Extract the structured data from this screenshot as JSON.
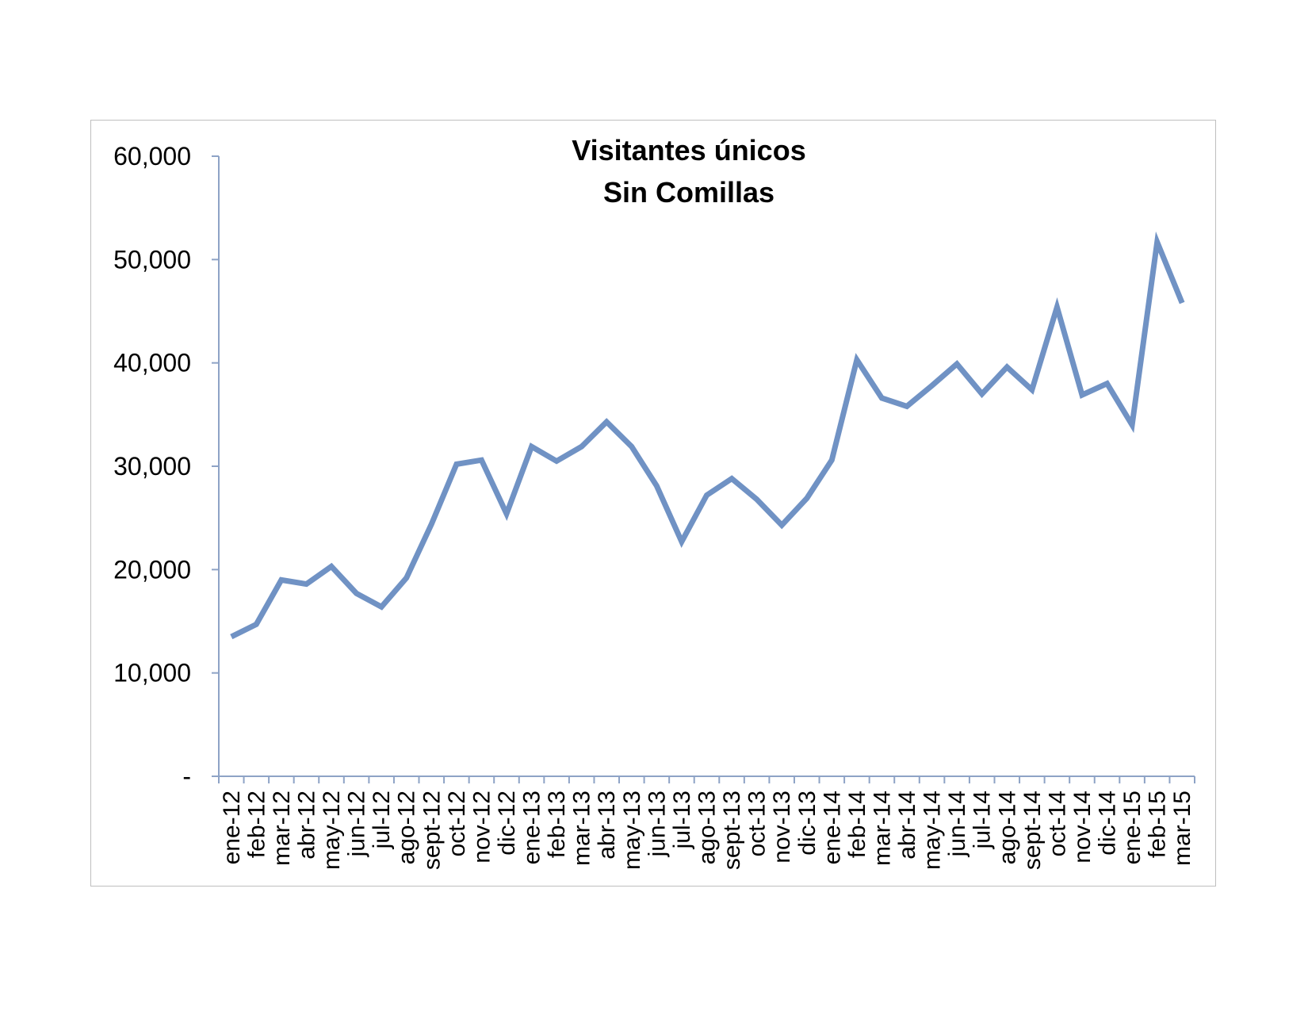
{
  "chart_data": {
    "type": "line",
    "title": [
      "Visitantes únicos",
      "Sin Comillas"
    ],
    "xlabel": "",
    "ylabel": "",
    "ylim": [
      0,
      60000
    ],
    "yticks": [
      0,
      10000,
      20000,
      30000,
      40000,
      50000,
      60000
    ],
    "ytick_labels": [
      "-",
      "10,000",
      "20,000",
      "30,000",
      "40,000",
      "50,000",
      "60,000"
    ],
    "grid": false,
    "legend": "none",
    "line_color": "#7092c4",
    "categories": [
      "ene-12",
      "feb-12",
      "mar-12",
      "abr-12",
      "may-12",
      "jun-12",
      "jul-12",
      "ago-12",
      "sept-12",
      "oct-12",
      "nov-12",
      "dic-12",
      "ene-13",
      "feb-13",
      "mar-13",
      "abr-13",
      "may-13",
      "jun-13",
      "jul-13",
      "ago-13",
      "sept-13",
      "oct-13",
      "nov-13",
      "dic-13",
      "ene-14",
      "feb-14",
      "mar-14",
      "abr-14",
      "may-14",
      "jun-14",
      "jul-14",
      "ago-14",
      "sept-14",
      "oct-14",
      "nov-14",
      "dic-14",
      "ene-15",
      "feb-15",
      "mar-15"
    ],
    "series": [
      {
        "values": [
          13500,
          14700,
          19000,
          18600,
          20300,
          17700,
          16400,
          19200,
          24400,
          30200,
          30600,
          25400,
          31900,
          30500,
          31900,
          34300,
          31900,
          28100,
          22700,
          27200,
          28800,
          26800,
          24300,
          26900,
          30600,
          40300,
          36600,
          35800,
          37800,
          39900,
          37000,
          39600,
          37400,
          45400,
          36900,
          38000,
          34000,
          51700,
          45800
        ]
      }
    ]
  }
}
